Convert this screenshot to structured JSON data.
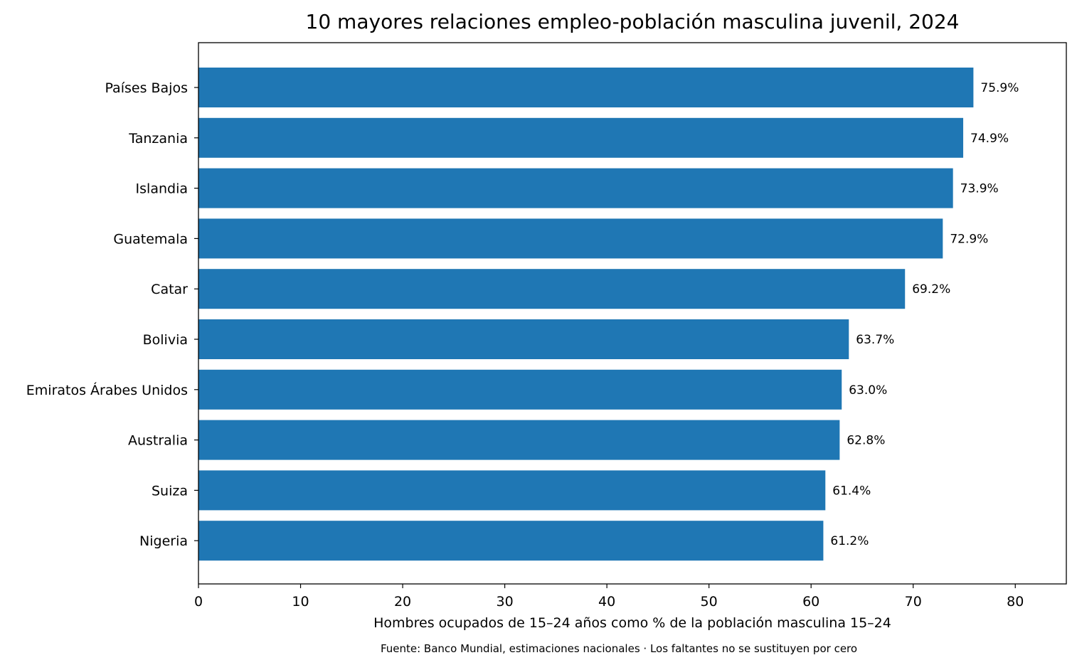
{
  "chart_data": {
    "type": "bar",
    "orientation": "horizontal",
    "title": "10 mayores relaciones empleo-población masculina juvenil, 2024",
    "xlabel": "Hombres ocupados de 15–24 años como % de la población masculina 15–24",
    "ylabel": "",
    "source_note": "Fuente: Banco Mundial, estimaciones nacionales · Los faltantes no se sustituyen por cero",
    "categories": [
      "Países Bajos",
      "Tanzania",
      "Islandia",
      "Guatemala",
      "Catar",
      "Bolivia",
      "Emiratos Árabes Unidos",
      "Australia",
      "Suiza",
      "Nigeria"
    ],
    "values": [
      75.9,
      74.9,
      73.9,
      72.9,
      69.2,
      63.7,
      63.0,
      62.8,
      61.4,
      61.2
    ],
    "value_labels": [
      "75.9%",
      "74.9%",
      "73.9%",
      "72.9%",
      "69.2%",
      "63.7%",
      "63.0%",
      "62.8%",
      "61.4%",
      "61.2%"
    ],
    "xlim": [
      0,
      85
    ],
    "xticks": [
      0,
      10,
      20,
      30,
      40,
      50,
      60,
      70,
      80
    ],
    "grid": false,
    "bar_color": "#1f77b4"
  }
}
